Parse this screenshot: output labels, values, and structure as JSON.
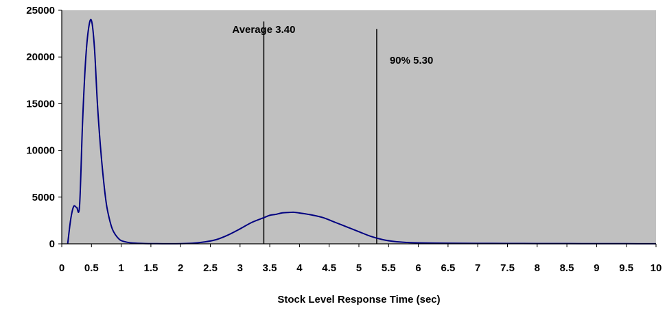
{
  "chart_data": {
    "type": "line",
    "title": "",
    "xlabel": "Stock Level Response Time (sec)",
    "ylabel": "",
    "xlim": [
      0,
      10
    ],
    "ylim": [
      0,
      25000
    ],
    "x_ticks": [
      "0",
      "0.5",
      "1",
      "1.5",
      "2",
      "2.5",
      "3",
      "3.5",
      "4",
      "4.5",
      "5",
      "5.5",
      "6",
      "6.5",
      "7",
      "7.5",
      "8",
      "8.5",
      "9",
      "9.5",
      "10"
    ],
    "y_ticks": [
      "0",
      "5000",
      "10000",
      "15000",
      "20000",
      "25000"
    ],
    "grid": false,
    "legend": "none",
    "colors": {
      "plot_background": "#c0c0c0",
      "series": "#000080",
      "reference_lines": "#000000"
    },
    "series": [
      {
        "x": [
          0.1,
          0.15,
          0.2,
          0.25,
          0.3,
          0.35,
          0.4,
          0.45,
          0.5,
          0.55,
          0.6,
          0.65,
          0.7,
          0.75,
          0.8,
          0.85,
          0.9,
          0.95,
          1.0,
          1.1,
          1.2,
          1.4,
          1.6,
          1.8,
          2.0,
          2.2,
          2.4,
          2.6,
          2.8,
          3.0,
          3.2,
          3.4,
          3.5,
          3.6,
          3.7,
          3.8,
          3.9,
          4.0,
          4.2,
          4.4,
          4.6,
          4.8,
          5.0,
          5.2,
          5.4,
          5.6,
          5.8,
          6.0,
          6.5,
          7.0,
          7.5,
          8.0,
          8.5,
          9.0,
          9.5,
          10.0
        ],
        "values": [
          0,
          2600,
          4000,
          3900,
          4100,
          13000,
          19500,
          23000,
          23900,
          21000,
          15000,
          10500,
          7000,
          4300,
          2700,
          1600,
          1000,
          600,
          350,
          170,
          80,
          30,
          15,
          10,
          20,
          60,
          200,
          450,
          950,
          1600,
          2300,
          2800,
          3050,
          3150,
          3300,
          3350,
          3380,
          3300,
          3100,
          2800,
          2300,
          1800,
          1300,
          800,
          450,
          250,
          150,
          100,
          60,
          50,
          40,
          30,
          25,
          20,
          15,
          10
        ]
      }
    ],
    "reference_lines": [
      {
        "x": 3.4,
        "label": "Average 3.40",
        "y_top": 23800
      },
      {
        "x": 5.3,
        "label": "90% 5.30",
        "y_top": 23000
      }
    ]
  }
}
